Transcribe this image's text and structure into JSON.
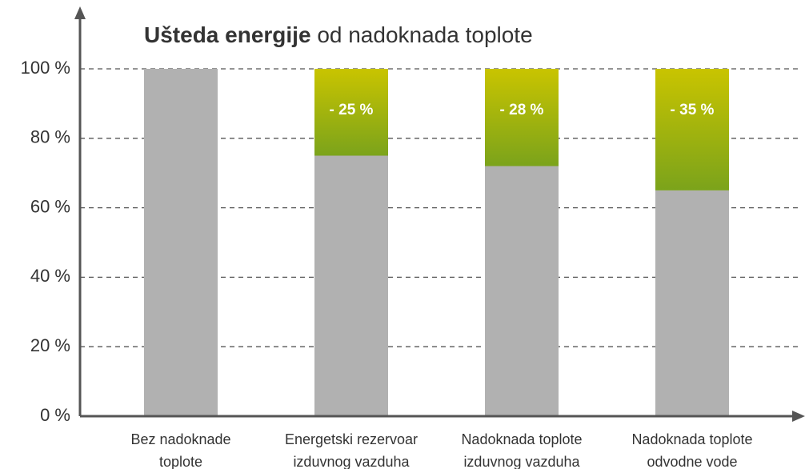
{
  "chart_data": {
    "type": "stacked_bar",
    "title_parts": [
      "Ušteda energije",
      "od nadoknada toplote"
    ],
    "categories": [
      [
        "Bez nadoknade",
        "toplote"
      ],
      [
        "Energetski rezervoar",
        "izduvnog vazduha"
      ],
      [
        "Nadoknada toplote",
        "izduvnog vazduha"
      ],
      [
        "Nadoknada toplote",
        "odvodne vode"
      ]
    ],
    "series": [
      {
        "color": "#b1b1b1",
        "values": [
          100,
          75,
          72,
          65
        ]
      },
      {
        "color": "#82a515",
        "values": [
          0,
          25,
          28,
          35
        ],
        "value_labels": [
          null,
          "- 25 %",
          "- 28 %",
          "- 35 %"
        ]
      }
    ],
    "ylim": [
      0,
      100
    ],
    "yticks": [
      {
        "value": 0,
        "label": "0 %"
      },
      {
        "value": 20,
        "label": "20 %"
      },
      {
        "value": 40,
        "label": "40 %"
      },
      {
        "value": 60,
        "label": "60 %"
      },
      {
        "value": 80,
        "label": "80 %"
      },
      {
        "value": 100,
        "label": "100 %"
      }
    ],
    "grid": true
  }
}
